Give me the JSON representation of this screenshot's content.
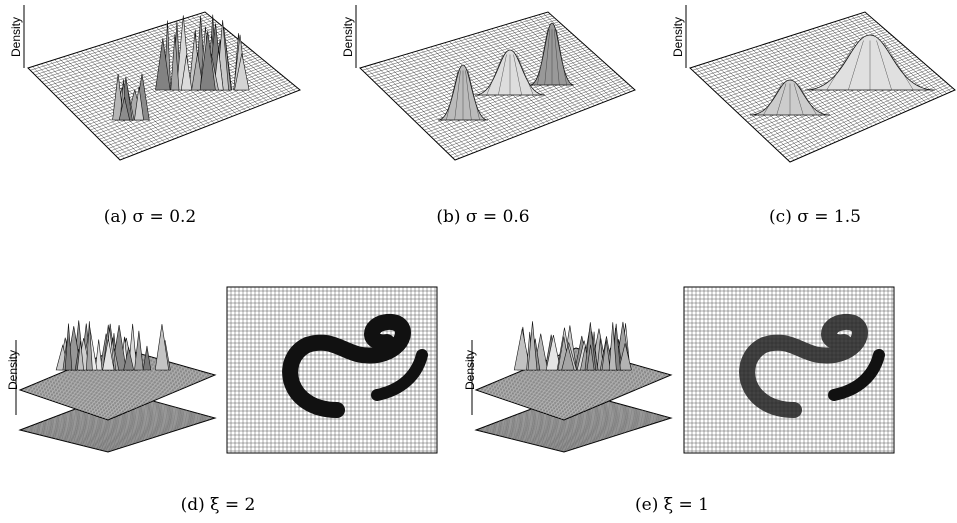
{
  "panels": [
    {
      "caption": "(a) σ = 0.2",
      "axis_label": "Density"
    },
    {
      "caption": "(b) σ = 0.6",
      "axis_label": "Density"
    },
    {
      "caption": "(c) σ = 1.5",
      "axis_label": "Density"
    },
    {
      "caption": "(d) ξ = 2",
      "axis_label": "Density"
    },
    {
      "caption": "(e) ξ = 1",
      "axis_label": "Density"
    }
  ]
}
